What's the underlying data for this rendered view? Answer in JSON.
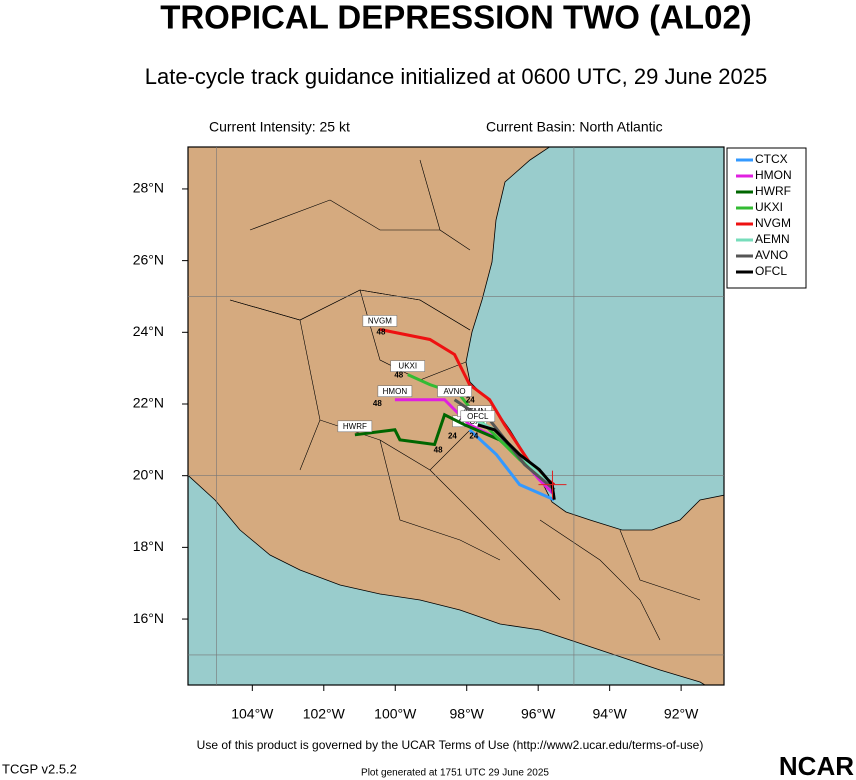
{
  "chart_data": {
    "type": "track",
    "title": "TROPICAL DEPRESSION TWO (AL02)",
    "subtitle": "Late-cycle track guidance initialized at 0600 UTC, 29 June 2025",
    "info_left": "Current Intensity: 25 kt",
    "info_right": "Current Basin: North Atlantic",
    "xlim": [
      -105.8,
      -90.8
    ],
    "ylim": [
      14.16,
      29.17
    ],
    "xticks": [
      {
        "value": -104,
        "label": "104°W"
      },
      {
        "value": -102,
        "label": "102°W"
      },
      {
        "value": -100,
        "label": "100°W"
      },
      {
        "value": -98,
        "label": "98°W"
      },
      {
        "value": -96,
        "label": "96°W"
      },
      {
        "value": -94,
        "label": "94°W"
      },
      {
        "value": -92,
        "label": "92°W"
      }
    ],
    "yticks": [
      {
        "value": 16,
        "label": "16°N"
      },
      {
        "value": 18,
        "label": "18°N"
      },
      {
        "value": 20,
        "label": "20°N"
      },
      {
        "value": 22,
        "label": "22°N"
      },
      {
        "value": 24,
        "label": "24°N"
      },
      {
        "value": 26,
        "label": "26°N"
      },
      {
        "value": 28,
        "label": "28°N"
      }
    ],
    "grid_lon": [
      -105,
      -95
    ],
    "grid_lat": [
      15,
      20,
      25
    ],
    "legend": "upper right",
    "current_position": {
      "x": -95.6,
      "y": 19.75,
      "color": "#dd2222"
    },
    "series": [
      {
        "name": "CTCX",
        "color": "#3399ff",
        "x": [
          -95.55,
          -96.52,
          -97.17,
          -97.92
        ],
        "values": [
          19.33,
          19.75,
          20.59,
          21.28
        ]
      },
      {
        "name": "HMON",
        "color": "#e020e0",
        "x": [
          -95.55,
          -95.97,
          -96.8,
          -97.92,
          -98.62,
          -98.81,
          -100.01
        ],
        "values": [
          19.47,
          19.89,
          20.87,
          21.42,
          22.12,
          22.12,
          22.12
        ]
      },
      {
        "name": "HWRF",
        "color": "#006600",
        "x": [
          -95.55,
          -96.11,
          -97.08,
          -98.06,
          -98.62,
          -98.9,
          -99.87,
          -100.01,
          -101.13
        ],
        "values": [
          19.61,
          20.17,
          21.0,
          21.42,
          21.7,
          20.87,
          21.0,
          21.28,
          21.14
        ]
      },
      {
        "name": "UKXI",
        "color": "#33bb33",
        "x": [
          -95.55,
          -96.52,
          -97.64,
          -98.2,
          -99.03,
          -99.65
        ],
        "values": [
          19.61,
          20.45,
          21.56,
          22.26,
          22.54,
          22.82
        ]
      },
      {
        "name": "NVGM",
        "color": "#ee1111",
        "x": [
          -95.55,
          -96.11,
          -96.66,
          -96.94,
          -97.36,
          -97.92,
          -98.34,
          -99.03,
          -100.43
        ],
        "values": [
          19.75,
          20.17,
          21.0,
          21.42,
          22.12,
          22.54,
          23.38,
          23.8,
          24.08
        ]
      },
      {
        "name": "AEMN",
        "color": "#77ddbb",
        "x": [
          -95.55,
          -96.38,
          -97.22,
          -97.78
        ],
        "values": [
          19.61,
          20.45,
          21.28,
          21.56
        ]
      },
      {
        "name": "AVNO",
        "color": "#555555",
        "x": [
          -95.55,
          -96.38,
          -97.36,
          -97.92,
          -98.34
        ],
        "values": [
          19.61,
          20.31,
          21.56,
          21.84,
          22.12
        ]
      },
      {
        "name": "OFCL",
        "color": "#000000",
        "x": [
          -95.55,
          -95.61,
          -95.97,
          -96.52,
          -97.22,
          -97.69
        ],
        "values": [
          19.33,
          19.75,
          20.17,
          20.59,
          21.28,
          21.42
        ]
      }
    ],
    "annotations": [
      {
        "text": "48",
        "x": -100.4,
        "y": 24.0
      },
      {
        "text": "48",
        "x": -99.9,
        "y": 22.8
      },
      {
        "text": "48",
        "x": -100.5,
        "y": 22.0
      },
      {
        "text": "48",
        "x": -98.8,
        "y": 20.7
      },
      {
        "text": "24",
        "x": -97.9,
        "y": 22.1
      },
      {
        "text": "24",
        "x": -97.8,
        "y": 21.1
      },
      {
        "text": "24",
        "x": -98.4,
        "y": 21.1
      }
    ],
    "terms": "Use of this product is governed by the UCAR Terms of Use (http://www2.ucar.edu/terms-of-use)",
    "version": "TCGP v2.5.2",
    "generated": "Plot generated at 1751 UTC  29 June 2025",
    "logo": "NCAR"
  }
}
